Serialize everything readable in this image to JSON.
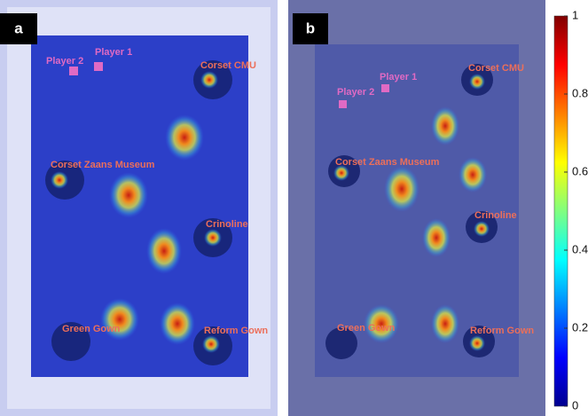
{
  "panels": [
    {
      "label": "a",
      "objects": [
        "Player 2",
        "Player 1",
        "Corset CMU",
        "Corset Zaans Museum",
        "Crinoline",
        "Green Gown",
        "Reform Gown"
      ]
    },
    {
      "label": "b",
      "objects": [
        "Corset CMU",
        "Player 1",
        "Player 2",
        "Corset Zaans Museum",
        "Crinoline",
        "Green Gown",
        "Reform Gown"
      ]
    }
  ],
  "colorbar": {
    "lim": [
      0,
      1
    ],
    "ticks": [
      0,
      0.2,
      0.4,
      0.6,
      0.8,
      1
    ]
  }
}
